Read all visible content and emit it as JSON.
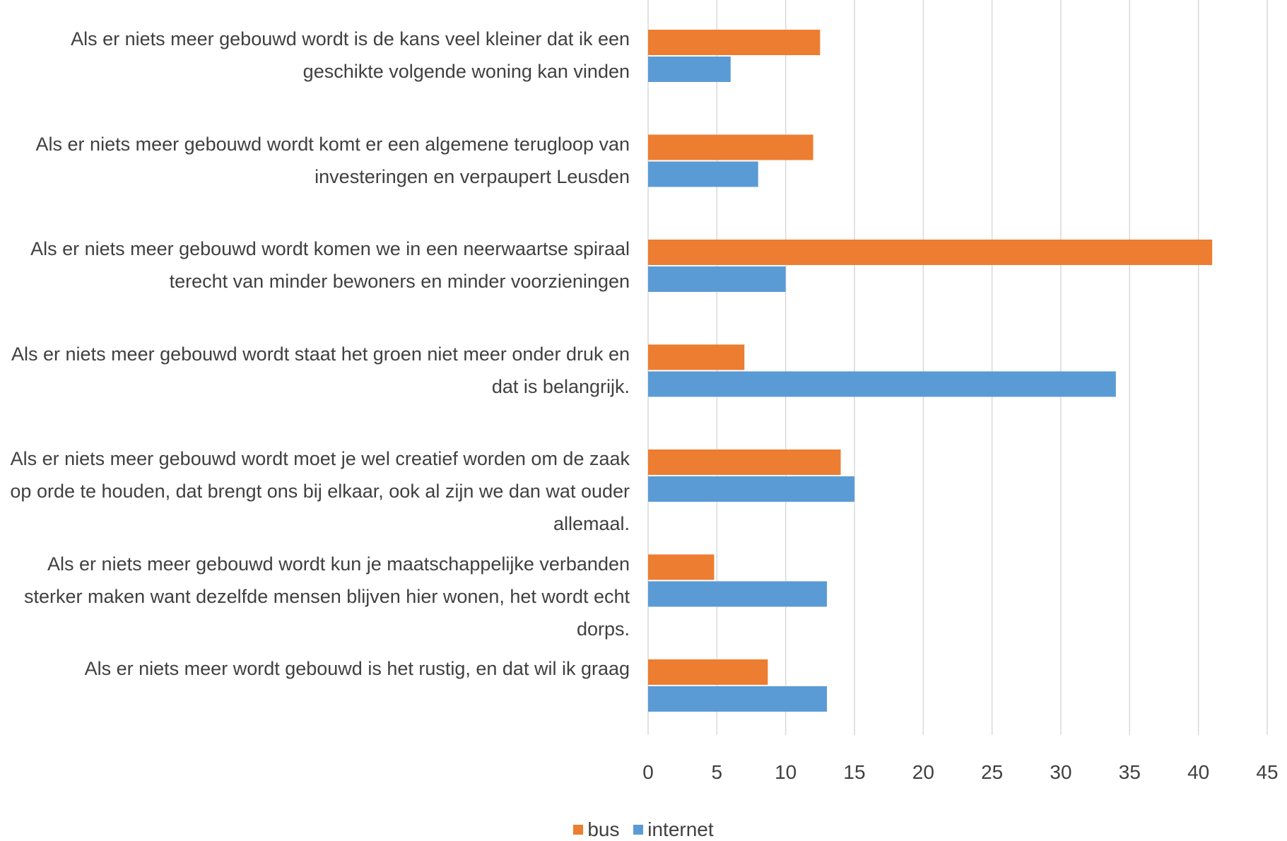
{
  "chart_data": {
    "type": "bar",
    "orientation": "horizontal",
    "categories": [
      "Als er niets meer gebouwd wordt is de kans veel kleiner dat ik een geschikte volgende woning kan vinden",
      "Als er niets meer gebouwd wordt komt er een algemene terugloop van investeringen en verpaupert Leusden",
      "Als er niets meer gebouwd wordt komen we in een neerwaartse spiraal terecht van minder bewoners en minder voorzieningen",
      "Als er niets meer gebouwd wordt staat het groen niet meer onder druk en dat is belangrijk.",
      "Als er niets meer gebouwd wordt moet je wel creatief worden om de zaak op orde te houden, dat brengt ons bij elkaar, ook al zijn we dan wat ouder allemaal.",
      "Als er niets meer gebouwd wordt kun je maatschappelijke verbanden sterker maken want dezelfde mensen blijven hier wonen, het wordt echt dorps.",
      "Als er niets meer wordt gebouwd is het rustig, en dat wil ik graag"
    ],
    "series": [
      {
        "name": "bus",
        "color": "#ED7D31",
        "values": [
          12.5,
          12,
          41,
          7,
          14,
          4.8,
          8.7
        ]
      },
      {
        "name": "internet",
        "color": "#5B9BD5",
        "values": [
          6,
          8,
          10,
          34,
          15,
          13,
          13
        ]
      }
    ],
    "xlim": [
      0,
      45
    ],
    "xticks": [
      "0",
      "5",
      "10",
      "15",
      "20",
      "25",
      "30",
      "35",
      "40",
      "45"
    ],
    "grid": true,
    "legend_position": "bottom",
    "gridline_color": "#D9D9D9"
  }
}
